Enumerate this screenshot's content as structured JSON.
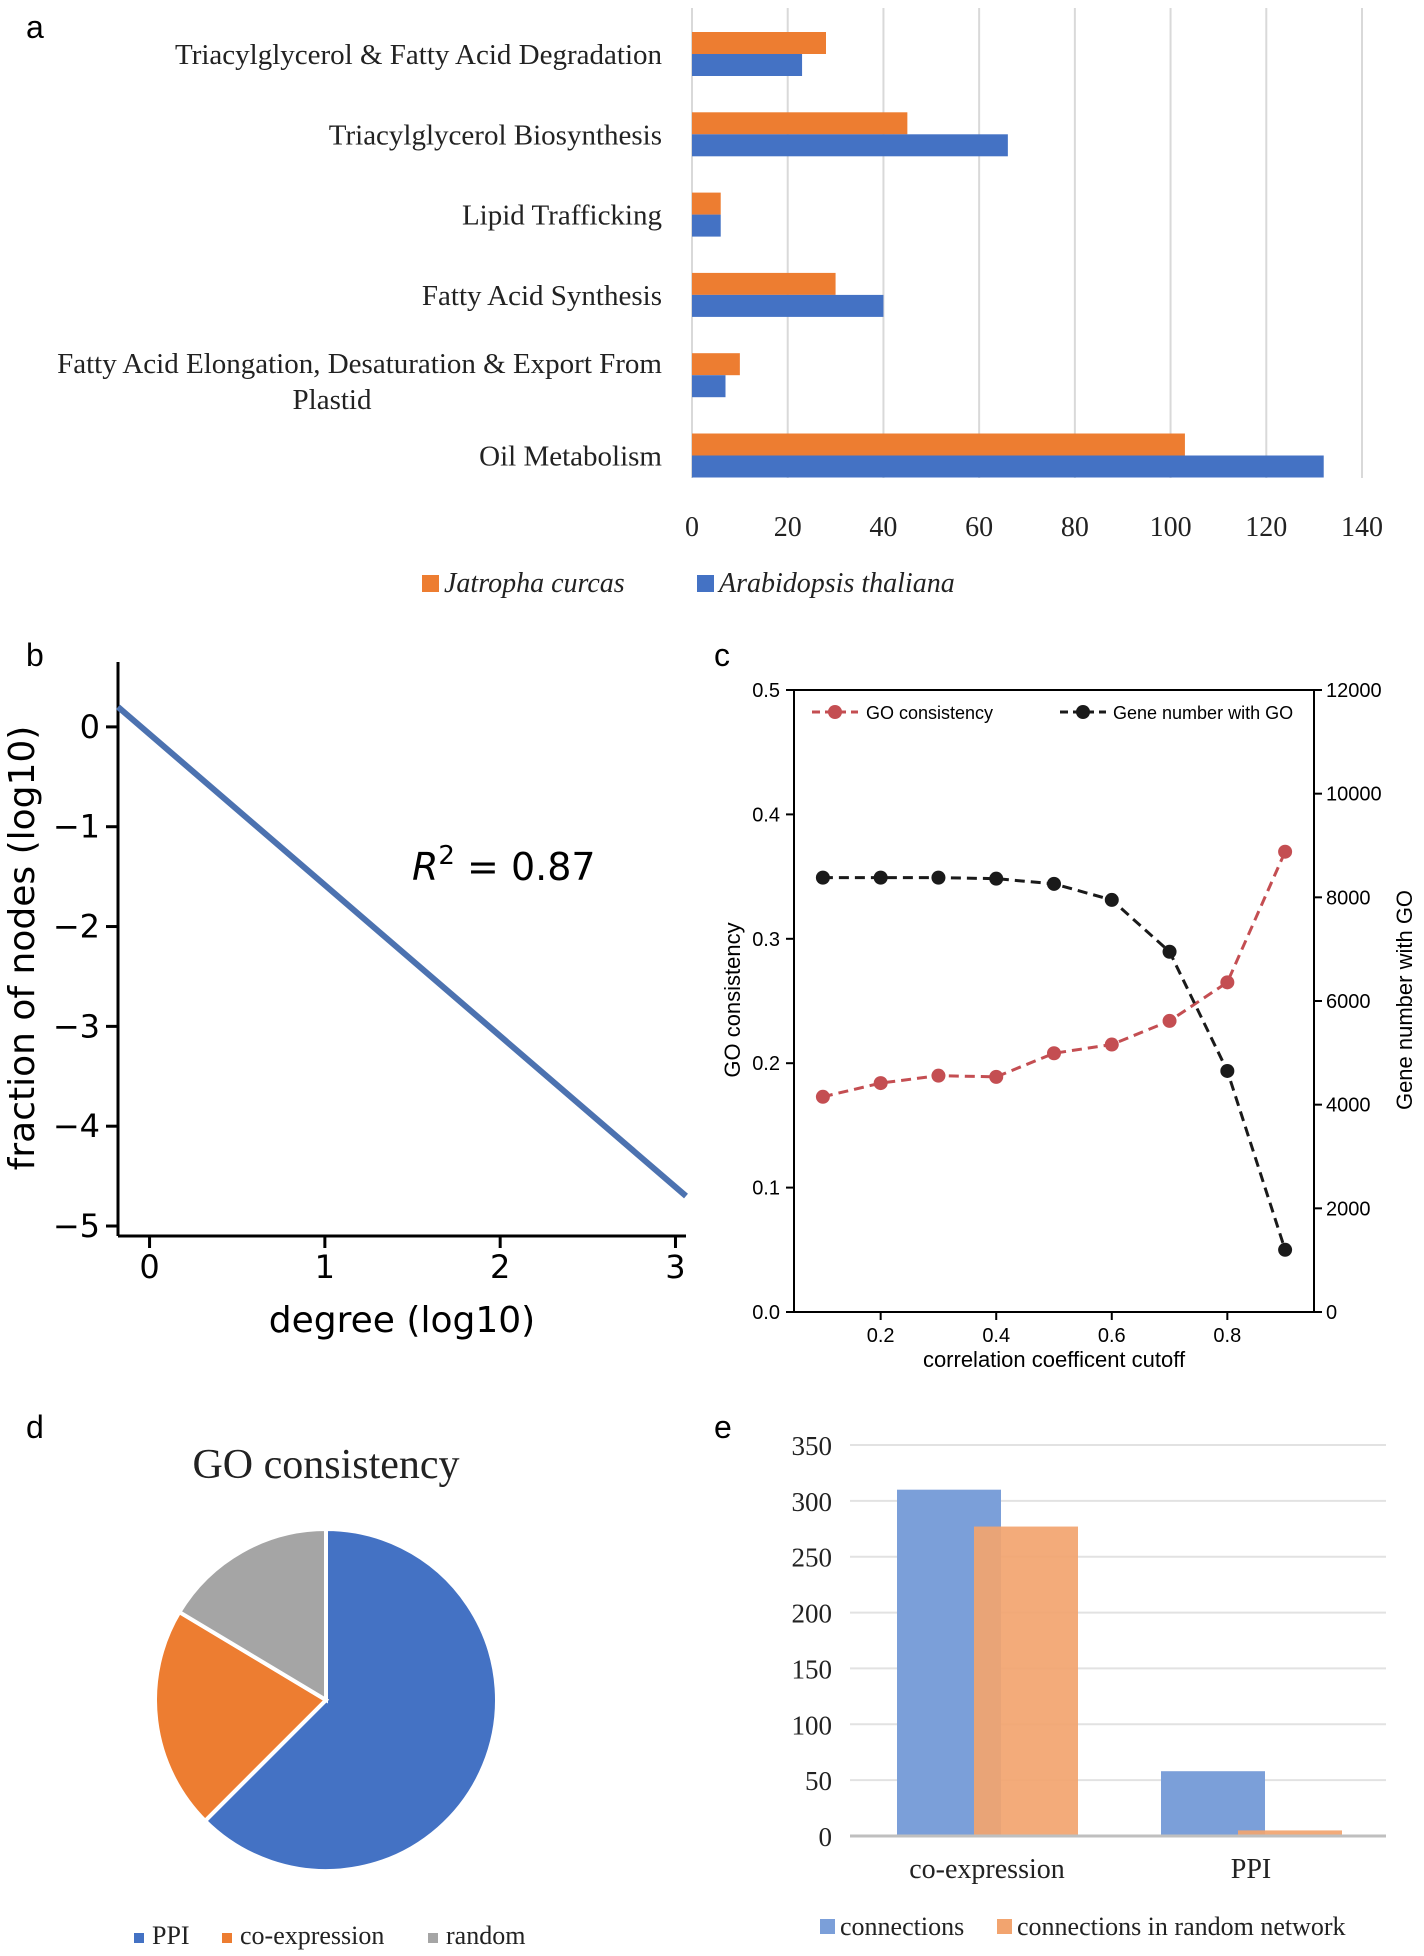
{
  "panels": {
    "a": "a",
    "b": "b",
    "c": "c",
    "d": "d",
    "e": "e"
  },
  "colors": {
    "orange": "#ED7D31",
    "blue": "#4472C4",
    "blue_b": "#4C72B0",
    "red_c": "#C44E52",
    "black": "#1a1a1a",
    "gray": "#A5A5A5",
    "blue_e": "#7B9FD9",
    "orange_e": "#F2A46F",
    "grid": "#d9d9d9"
  },
  "chart_data": [
    {
      "id": "a",
      "type": "bar",
      "orientation": "horizontal",
      "categories": [
        [
          "Triacylglycerol & Fatty Acid Degradation"
        ],
        [
          "Triacylglycerol Biosynthesis"
        ],
        [
          "Lipid Trafficking"
        ],
        [
          "Fatty Acid Synthesis"
        ],
        [
          "Fatty Acid Elongation, Desaturation & Export From",
          "Plastid"
        ],
        [
          "Oil Metabolism"
        ]
      ],
      "series": [
        {
          "name": "Jatropha curcas",
          "color": "#ED7D31",
          "values": [
            28,
            45,
            6,
            30,
            10,
            103
          ]
        },
        {
          "name": "Arabidopsis thaliana",
          "color": "#4472C4",
          "values": [
            23,
            66,
            6,
            40,
            7,
            132
          ]
        }
      ],
      "xlim": [
        0,
        140
      ],
      "xticks": [
        "0",
        "20",
        "40",
        "60",
        "80",
        "100",
        "120",
        "140"
      ],
      "legend": "bottom",
      "grid": true
    },
    {
      "id": "b",
      "type": "line",
      "x": [
        -0.18,
        3.06
      ],
      "y": [
        0.2,
        -4.7
      ],
      "xlabel": "degree (log10)",
      "ylabel": "fraction of nodes (log10)",
      "xlim": [
        -0.18,
        3.06
      ],
      "ylim": [
        -5.1,
        0.65
      ],
      "xticks": [
        "0",
        "1",
        "2",
        "3"
      ],
      "yticks": [
        "0",
        "−1",
        "−2",
        "−3",
        "−4",
        "−5"
      ],
      "annotation": {
        "r": "R",
        "sup": "2",
        "rest": " = 0.87"
      },
      "color": "#4C72B0"
    },
    {
      "id": "c",
      "type": "line",
      "x": [
        0.1,
        0.2,
        0.3,
        0.4,
        0.5,
        0.6,
        0.7,
        0.8,
        0.9
      ],
      "xlim": [
        0.05,
        0.95
      ],
      "xticks": [
        "0.2",
        "0.4",
        "0.6",
        "0.8"
      ],
      "xlabel": "correlation coefficent cutoff",
      "series": [
        {
          "name": "GO consistency",
          "axis": "left",
          "color": "#C44E52",
          "values": [
            0.173,
            0.184,
            0.19,
            0.189,
            0.208,
            0.215,
            0.234,
            0.265,
            0.37
          ]
        },
        {
          "name": "Gene number with GO",
          "axis": "right",
          "color": "#1a1a1a",
          "values": [
            8380,
            8380,
            8380,
            8360,
            8260,
            7950,
            6950,
            4650,
            1200
          ]
        }
      ],
      "ylabel_left": "GO consistency",
      "ylabel_right": "Gene number with GO",
      "ylim_left": [
        0,
        0.5
      ],
      "ylim_right": [
        0,
        12000
      ],
      "yticks_left": [
        "0.0",
        "0.1",
        "0.2",
        "0.3",
        "0.4",
        "0.5"
      ],
      "yticks_right": [
        "0",
        "2000",
        "4000",
        "6000",
        "8000",
        "10000",
        "12000"
      ],
      "legend": "top"
    },
    {
      "id": "d",
      "type": "pie",
      "title": "GO consistency",
      "labels": [
        "PPI",
        "co-expression",
        "random"
      ],
      "values": [
        62.5,
        21.1,
        16.4
      ],
      "colors": [
        "#4472C4",
        "#ED7D31",
        "#A5A5A5"
      ],
      "legend": "bottom"
    },
    {
      "id": "e",
      "type": "bar",
      "categories": [
        "co-expression",
        "PPI"
      ],
      "series": [
        {
          "name": "connections",
          "color": "#7B9FD9",
          "values": [
            310,
            58
          ]
        },
        {
          "name": "connections in random network",
          "color": "#F2A46F",
          "values": [
            277,
            5
          ]
        }
      ],
      "ylim": [
        0,
        350
      ],
      "yticks": [
        "0",
        "50",
        "100",
        "150",
        "200",
        "250",
        "300",
        "350"
      ],
      "legend": "bottom",
      "grid": true
    }
  ]
}
